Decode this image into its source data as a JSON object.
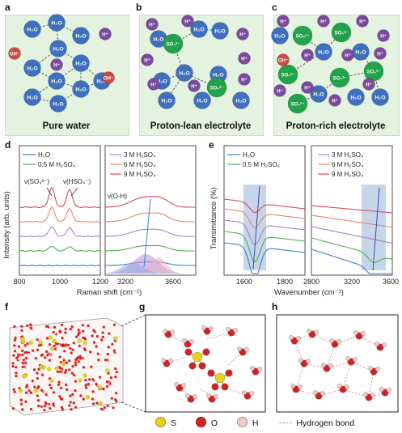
{
  "panels": {
    "a": {
      "label": "a",
      "caption": "Pure water"
    },
    "b": {
      "label": "b",
      "caption": "Proton-lean electrolyte"
    },
    "c": {
      "label": "c",
      "caption": "Proton-rich electrolyte"
    },
    "d": {
      "label": "d"
    },
    "e": {
      "label": "e"
    },
    "f": {
      "label": "f"
    },
    "g": {
      "label": "g"
    },
    "h": {
      "label": "h"
    }
  },
  "molecule_labels": {
    "water": "H₂O",
    "proton": "H⁺",
    "hydroxide": "OH⁻",
    "sulfate": "SO₄²⁻"
  },
  "colors": {
    "water": "#3f6fbf",
    "proton": "#7b4a9c",
    "hydroxide": "#c94a45",
    "sulfate": "#22a24a",
    "panel_bg": "#e3f3df",
    "S": "#e8d21c",
    "O": "#d42020",
    "H": "#f0c9c9",
    "hbond": "#d48a8a"
  },
  "chart_data": [
    {
      "type": "line",
      "panel": "d",
      "ylabel": "Intensity (arb. units)",
      "xlabel": "Raman shift (cm⁻¹)",
      "left_xlim": [
        800,
        1200
      ],
      "left_ticks": [
        "800",
        "1000",
        "1200"
      ],
      "right_xlim": [
        3000,
        3800
      ],
      "right_ticks": [
        "3200",
        "3600"
      ],
      "annotations": [
        "ν(SO₄²⁻)",
        "ν(HSO₄⁻)",
        "ν(O-H)"
      ],
      "series": [
        {
          "name": "H₂O",
          "color": "#3f7fc4"
        },
        {
          "name": "0.5 M H₂SO₄",
          "color": "#4fb050"
        },
        {
          "name": "3 M H₂SO₄",
          "color": "#a582cc"
        },
        {
          "name": "6 M H₂SO₄",
          "color": "#e8866c"
        },
        {
          "name": "9 M H₂SO₄",
          "color": "#d9485a"
        }
      ]
    },
    {
      "type": "line",
      "panel": "e",
      "ylabel": "Transmittance (%)",
      "xlabel": "Wavenumber (cm⁻¹)",
      "left_xlim": [
        1400,
        1900
      ],
      "left_ticks": [
        "1600",
        "1800"
      ],
      "right_xlim": [
        2800,
        3600
      ],
      "right_ticks": [
        "2800",
        "3200",
        "3600"
      ],
      "series": [
        {
          "name": "H₂O",
          "color": "#3f7fc4"
        },
        {
          "name": "0.5 M H₂SO₄",
          "color": "#4fb050"
        },
        {
          "name": "3 M H₂SO₄",
          "color": "#a582cc"
        },
        {
          "name": "6 M H₂SO₄",
          "color": "#e8866c"
        },
        {
          "name": "9 M H₂SO₄",
          "color": "#d9485a"
        }
      ]
    }
  ],
  "legend": {
    "S": "S",
    "O": "O",
    "H": "H",
    "hbond": "Hydrogen bond"
  }
}
